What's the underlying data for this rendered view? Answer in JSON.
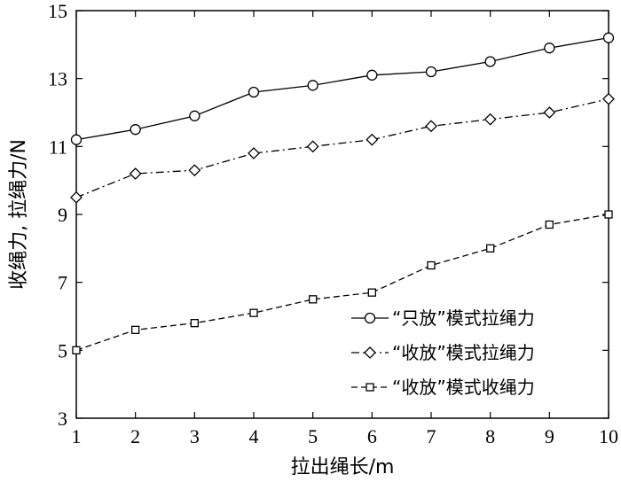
{
  "chart_data": {
    "type": "line",
    "title": "",
    "xlabel": "拉出绳长/m",
    "ylabel": "收绳力, 拉绳力/N",
    "xlim": [
      1,
      10
    ],
    "ylim": [
      3,
      15
    ],
    "xticks": [
      1,
      2,
      3,
      4,
      5,
      6,
      7,
      8,
      9,
      10
    ],
    "yticks": [
      3,
      5,
      7,
      9,
      11,
      13,
      15
    ],
    "grid": false,
    "legend_position": "bottom-right",
    "x": [
      1,
      2,
      3,
      4,
      5,
      6,
      7,
      8,
      9,
      10
    ],
    "series": [
      {
        "name": "“只放”模式拉绳力",
        "marker": "circle",
        "line_style": "solid",
        "values": [
          11.2,
          11.5,
          11.9,
          12.6,
          12.8,
          13.1,
          13.2,
          13.5,
          13.9,
          14.2
        ]
      },
      {
        "name": "“收放”模式拉绳力",
        "marker": "diamond",
        "line_style": "dash-dot",
        "values": [
          9.5,
          10.2,
          10.3,
          10.8,
          11.0,
          11.2,
          11.6,
          11.8,
          12.0,
          12.4
        ]
      },
      {
        "name": "“收放”模式收绳力",
        "marker": "square",
        "line_style": "dashed",
        "values": [
          5.0,
          5.6,
          5.8,
          6.1,
          6.5,
          6.7,
          7.5,
          8.0,
          8.7,
          9.0
        ]
      }
    ]
  }
}
